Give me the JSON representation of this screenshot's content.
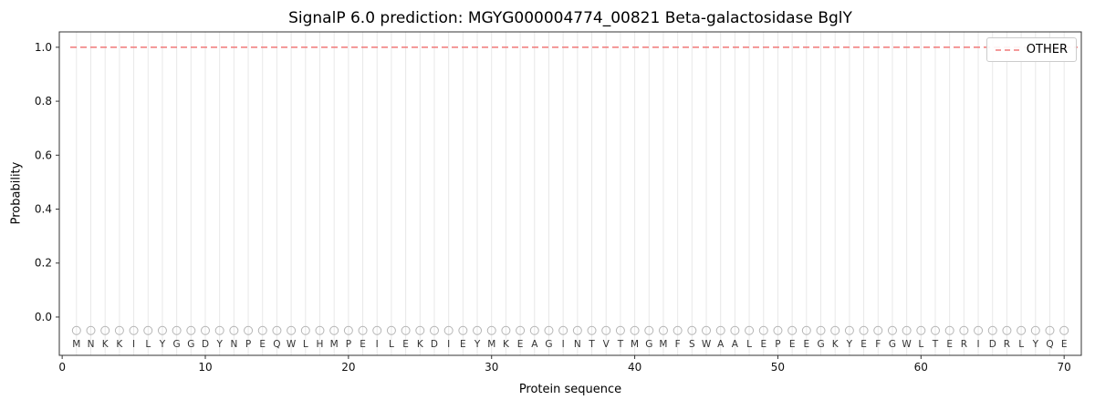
{
  "chart_data": {
    "type": "line",
    "title": "SignalP 6.0 prediction: MGYG000004774_00821 Beta-galactosidase BglY",
    "xlabel": "Protein sequence",
    "ylabel": "Probability",
    "xlim": [
      -0.2,
      71.2
    ],
    "ylim": [
      -0.142,
      1.057
    ],
    "xticks": [
      0,
      10,
      20,
      30,
      40,
      50,
      60,
      70
    ],
    "yticks": [
      0.0,
      0.2,
      0.4,
      0.6,
      0.8,
      1.0
    ],
    "ytick_labels": [
      "0.0",
      "0.2",
      "0.4",
      "0.6",
      "0.8",
      "1.0"
    ],
    "grid": "vertical-per-residue",
    "legend": {
      "position": "upper-right",
      "entries": [
        {
          "label": "OTHER",
          "color": "#f07878",
          "style": "dashed"
        }
      ]
    },
    "series": [
      {
        "name": "OTHER",
        "style": "dashed",
        "color": "#f07878",
        "y_constant": 1.0
      }
    ],
    "sequence": "MNKKILYGGDYNPEQWLHMPEILEKDIEYMKEAGINTVTMGMFSWAALEPEEGKYEFGWLTERIDRLYQE",
    "residue_markers": {
      "shape": "open-circle",
      "y": -0.05,
      "radius": 4.5
    },
    "residue_letter_y": -0.098,
    "colors": {
      "background": "#ffffff",
      "spine": "#333333",
      "tick_label": "#111111",
      "grid": "#e8e8e8",
      "marker": "#b5b5b5",
      "letter": "#333333",
      "other_line": "#f07878"
    }
  }
}
